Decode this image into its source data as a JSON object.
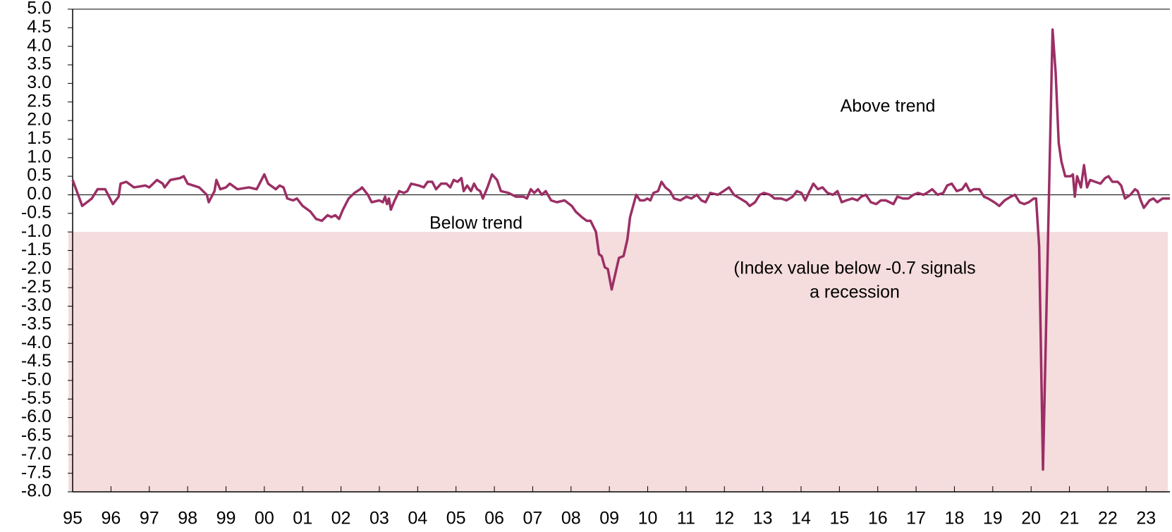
{
  "chart_data": {
    "type": "line",
    "color": "#9b2f65",
    "shade_range": [
      -8.0,
      -1.0
    ],
    "shade_color": "#f5dcdd",
    "reference_line": 0,
    "annotations": [
      "Above trend",
      "Below trend",
      "(Index value below -0.7 signals",
      "a recession"
    ],
    "xlim": [
      1995,
      2023.62
    ],
    "ylim": [
      -8,
      5
    ],
    "xticks": [
      {
        "value": 1995,
        "label": "95"
      },
      {
        "value": 1996,
        "label": "96"
      },
      {
        "value": 1997,
        "label": "97"
      },
      {
        "value": 1998,
        "label": "98"
      },
      {
        "value": 1999,
        "label": "99"
      },
      {
        "value": 2000,
        "label": "00"
      },
      {
        "value": 2001,
        "label": "01"
      },
      {
        "value": 2002,
        "label": "02"
      },
      {
        "value": 2003,
        "label": "03"
      },
      {
        "value": 2004,
        "label": "04"
      },
      {
        "value": 2005,
        "label": "05"
      },
      {
        "value": 2006,
        "label": "06"
      },
      {
        "value": 2007,
        "label": "07"
      },
      {
        "value": 2008,
        "label": "08"
      },
      {
        "value": 2009,
        "label": "09"
      },
      {
        "value": 2010,
        "label": "10"
      },
      {
        "value": 2011,
        "label": "11"
      },
      {
        "value": 2012,
        "label": "12"
      },
      {
        "value": 2013,
        "label": "13"
      },
      {
        "value": 2014,
        "label": "14"
      },
      {
        "value": 2015,
        "label": "15"
      },
      {
        "value": 2016,
        "label": "16"
      },
      {
        "value": 2017,
        "label": "17"
      },
      {
        "value": 2018,
        "label": "18"
      },
      {
        "value": 2019,
        "label": "19"
      },
      {
        "value": 2020,
        "label": "20"
      },
      {
        "value": 2021,
        "label": "21"
      },
      {
        "value": 2022,
        "label": "22"
      },
      {
        "value": 2023,
        "label": "23"
      }
    ],
    "yticks": [
      {
        "value": 5,
        "label": "5.0"
      },
      4.5,
      {
        "value": 4,
        "label": "4.0"
      },
      3.5,
      {
        "value": 3,
        "label": "3.0"
      },
      2.5,
      {
        "value": 2,
        "label": "2.0"
      },
      1.5,
      {
        "value": 1,
        "label": "1.0"
      },
      0.5,
      {
        "value": 0,
        "label": "0.0"
      },
      -0.5,
      {
        "value": -1,
        "label": "-1.0"
      },
      -1.5,
      {
        "value": -2,
        "label": "-2.0"
      },
      -2.5,
      {
        "value": -3,
        "label": "-3.0"
      },
      -3.5,
      {
        "value": -4,
        "label": "-4.0"
      },
      -4.5,
      {
        "value": -5,
        "label": "-5.0"
      },
      -5.5,
      {
        "value": -6,
        "label": "-6.0"
      },
      -6.5,
      {
        "value": -7,
        "label": "-7.0"
      },
      -7.5,
      {
        "value": -8,
        "label": "-8.0"
      }
    ],
    "x": [
      1995.0,
      1995.25,
      1995.5,
      1995.65,
      1995.85,
      1996.05,
      1996.2,
      1996.25,
      1996.4,
      1996.6,
      1996.9,
      1997.0,
      1997.2,
      1997.35,
      1997.4,
      1997.55,
      1997.8,
      1997.9,
      1998.0,
      1998.3,
      1998.5,
      1998.55,
      1998.7,
      1998.75,
      1998.85,
      1999.0,
      1999.1,
      1999.3,
      1999.6,
      1999.8,
      1999.9,
      2000.0,
      2000.1,
      2000.3,
      2000.4,
      2000.5,
      2000.6,
      2000.75,
      2000.85,
      2001.0,
      2001.2,
      2001.35,
      2001.5,
      2001.65,
      2001.75,
      2001.85,
      2001.95,
      2002.05,
      2002.1,
      2002.2,
      2002.35,
      2002.5,
      2002.55,
      2002.7,
      2002.8,
      2003.0,
      2003.09,
      2003.15,
      2003.2,
      2003.25,
      2003.3,
      2003.4,
      2003.52,
      2003.64,
      2003.73,
      2003.83,
      2004.03,
      2004.16,
      2004.26,
      2004.38,
      2004.48,
      2004.61,
      2004.75,
      2004.85,
      2004.94,
      2005.04,
      2005.14,
      2005.2,
      2005.29,
      2005.39,
      2005.47,
      2005.55,
      2005.63,
      2005.7,
      2005.82,
      2005.94,
      2006.07,
      2006.17,
      2006.37,
      2006.56,
      2006.76,
      2006.85,
      2006.95,
      2007.04,
      2007.14,
      2007.24,
      2007.34,
      2007.48,
      2007.63,
      2007.83,
      2008.02,
      2008.12,
      2008.28,
      2008.41,
      2008.51,
      2008.65,
      2008.73,
      2008.8,
      2008.88,
      2008.96,
      2009.06,
      2009.15,
      2009.25,
      2009.37,
      2009.47,
      2009.54,
      2009.7,
      2009.8,
      2009.91,
      2009.99,
      2010.07,
      2010.15,
      2010.27,
      2010.36,
      2010.46,
      2010.58,
      2010.69,
      2010.85,
      2011.01,
      2011.14,
      2011.28,
      2011.4,
      2011.51,
      2011.63,
      2011.83,
      2011.98,
      2012.12,
      2012.25,
      2012.41,
      2012.57,
      2012.66,
      2012.8,
      2012.92,
      2013.03,
      2013.19,
      2013.31,
      2013.48,
      2013.62,
      2013.78,
      2013.89,
      2014.01,
      2014.11,
      2014.2,
      2014.32,
      2014.44,
      2014.56,
      2014.69,
      2014.83,
      2014.95,
      2015.06,
      2015.18,
      2015.34,
      2015.47,
      2015.57,
      2015.69,
      2015.82,
      2015.96,
      2016.08,
      2016.21,
      2016.31,
      2016.41,
      2016.51,
      2016.66,
      2016.8,
      2016.93,
      2017.05,
      2017.19,
      2017.28,
      2017.42,
      2017.56,
      2017.71,
      2017.81,
      2017.93,
      2018.06,
      2018.2,
      2018.3,
      2018.4,
      2018.51,
      2018.65,
      2018.77,
      2018.88,
      2019.04,
      2019.17,
      2019.31,
      2019.47,
      2019.58,
      2019.7,
      2019.82,
      2019.94,
      2020.07,
      2020.13,
      2020.21,
      2020.31,
      2020.56,
      2020.64,
      2020.72,
      2020.79,
      2020.89,
      2021.03,
      2021.09,
      2021.14,
      2021.2,
      2021.3,
      2021.38,
      2021.46,
      2021.54,
      2021.67,
      2021.81,
      2021.93,
      2022.02,
      2022.12,
      2022.26,
      2022.35,
      2022.45,
      2022.59,
      2022.71,
      2022.78,
      2022.86,
      2022.94,
      2023.09,
      2023.19,
      2023.29,
      2023.43,
      2023.62
    ],
    "values": [
      0.4,
      -0.3,
      -0.1,
      0.15,
      0.15,
      -0.25,
      -0.05,
      0.3,
      0.35,
      0.2,
      0.25,
      0.2,
      0.4,
      0.3,
      0.2,
      0.4,
      0.45,
      0.5,
      0.3,
      0.2,
      0.0,
      -0.2,
      0.1,
      0.4,
      0.15,
      0.2,
      0.3,
      0.15,
      0.2,
      0.15,
      0.35,
      0.55,
      0.3,
      0.15,
      0.25,
      0.2,
      -0.1,
      -0.15,
      -0.1,
      -0.3,
      -0.45,
      -0.65,
      -0.7,
      -0.55,
      -0.6,
      -0.55,
      -0.65,
      -0.4,
      -0.3,
      -0.1,
      0.05,
      0.15,
      0.2,
      0.0,
      -0.2,
      -0.15,
      -0.2,
      -0.05,
      -0.25,
      -0.1,
      -0.4,
      -0.15,
      0.1,
      0.05,
      0.1,
      0.3,
      0.25,
      0.2,
      0.35,
      0.35,
      0.15,
      0.3,
      0.3,
      0.2,
      0.4,
      0.35,
      0.45,
      0.1,
      0.25,
      0.1,
      0.3,
      0.15,
      0.1,
      -0.1,
      0.2,
      0.55,
      0.4,
      0.1,
      0.05,
      -0.05,
      -0.05,
      -0.1,
      0.15,
      0.05,
      0.15,
      0.0,
      0.1,
      -0.15,
      -0.2,
      -0.15,
      -0.3,
      -0.45,
      -0.6,
      -0.7,
      -0.7,
      -1.0,
      -1.6,
      -1.65,
      -1.95,
      -2.0,
      -2.55,
      -2.15,
      -1.7,
      -1.65,
      -1.2,
      -0.6,
      0.0,
      -0.15,
      -0.15,
      -0.1,
      -0.15,
      0.05,
      0.1,
      0.35,
      0.2,
      0.1,
      -0.1,
      -0.15,
      -0.05,
      -0.1,
      0.0,
      -0.15,
      -0.2,
      0.05,
      0.0,
      0.1,
      0.2,
      0.0,
      -0.1,
      -0.2,
      -0.3,
      -0.2,
      0.0,
      0.05,
      0.0,
      -0.1,
      -0.1,
      -0.15,
      -0.05,
      0.1,
      0.05,
      -0.15,
      0.05,
      0.3,
      0.15,
      0.2,
      0.05,
      0.0,
      0.1,
      -0.2,
      -0.15,
      -0.1,
      -0.15,
      -0.05,
      0.0,
      -0.2,
      -0.25,
      -0.15,
      -0.15,
      -0.2,
      -0.25,
      -0.05,
      -0.1,
      -0.1,
      0.0,
      0.05,
      0.0,
      0.05,
      0.15,
      0.0,
      0.05,
      0.25,
      0.3,
      0.1,
      0.15,
      0.3,
      0.1,
      0.15,
      0.15,
      -0.05,
      -0.1,
      -0.2,
      -0.3,
      -0.15,
      -0.05,
      0.0,
      -0.2,
      -0.25,
      -0.2,
      -0.1,
      -0.1,
      -1.4,
      -7.4,
      4.45,
      3.3,
      1.4,
      0.9,
      0.5,
      0.5,
      0.55,
      -0.05,
      0.5,
      0.2,
      0.8,
      0.2,
      0.4,
      0.35,
      0.3,
      0.45,
      0.5,
      0.35,
      0.35,
      0.25,
      -0.1,
      0.0,
      0.15,
      0.1,
      -0.15,
      -0.35,
      -0.15,
      -0.1,
      -0.2,
      -0.1,
      -0.1
    ]
  }
}
